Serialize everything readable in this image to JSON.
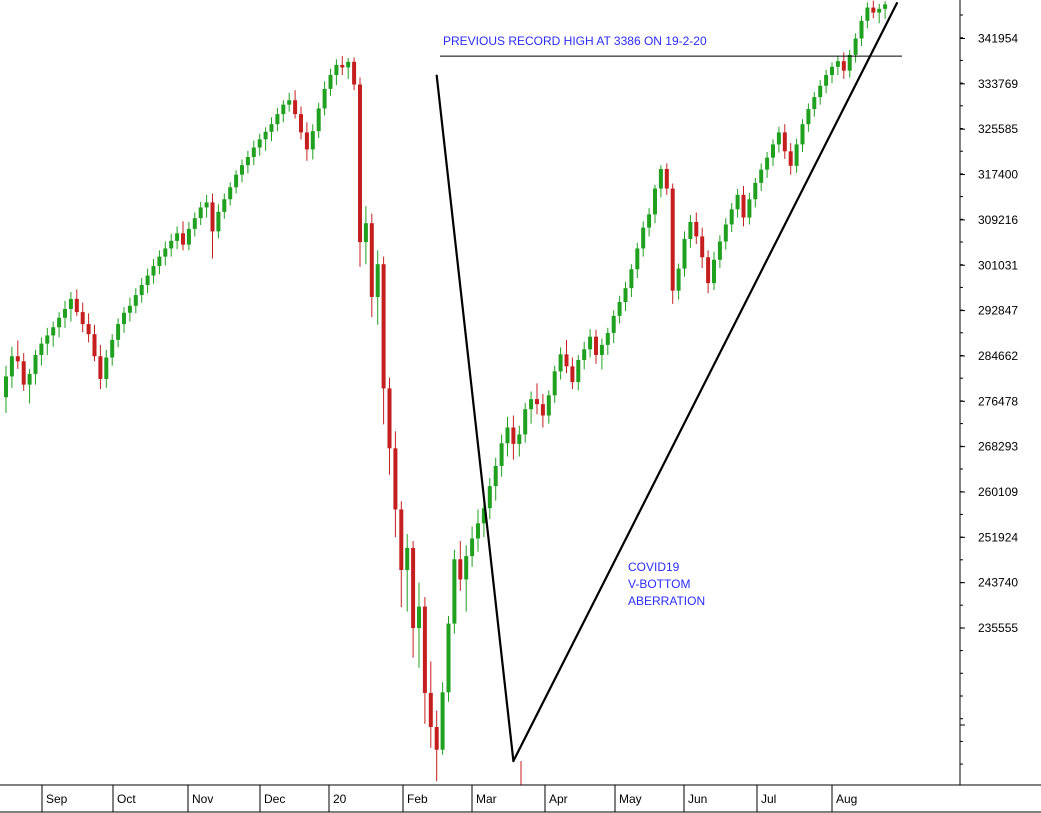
{
  "chart_data": {
    "type": "candlestick",
    "y_scale": "linear",
    "y_ticks": [
      "341954",
      "333769",
      "325585",
      "317400",
      "309216",
      "301031",
      "292847",
      "284662",
      "276478",
      "268293",
      "260109",
      "251924",
      "243740",
      "235555"
    ],
    "x_ticks": [
      "Sep",
      "Oct",
      "Nov",
      "Dec",
      "20",
      "Feb",
      "Mar",
      "Apr",
      "May",
      "Jun",
      "Jul",
      "Aug"
    ],
    "ylim": [
      223000,
      347500
    ],
    "annotations": [
      {
        "id": "record",
        "text": "PREVIOUS RECORD HIGH AT 3386 ON 19-2-20"
      },
      {
        "id": "covid",
        "lines": [
          "COVID19",
          "V-BOTTOM",
          "ABERRATION"
        ]
      }
    ],
    "reference_line": {
      "value": 338600,
      "label_ref": "record"
    },
    "trendlines": [
      {
        "name": "crash-line",
        "from": {
          "bar": 73,
          "value": 335500
        },
        "to": {
          "bar": 86,
          "value": 226800
        }
      },
      {
        "name": "recovery-line",
        "from": {
          "bar": 86,
          "value": 226800
        },
        "to": {
          "bar": 151,
          "value": 347000
        }
      }
    ],
    "bar_count": 150,
    "candles": [
      [
        284500,
        289500,
        282000,
        287800
      ],
      [
        287800,
        292500,
        286000,
        291000
      ],
      [
        291000,
        293500,
        289000,
        290200
      ],
      [
        290200,
        291500,
        285500,
        286500
      ],
      [
        286500,
        289000,
        283500,
        288200
      ],
      [
        288200,
        292000,
        286500,
        291200
      ],
      [
        291200,
        294000,
        289500,
        293000
      ],
      [
        293000,
        295500,
        291200,
        294300
      ],
      [
        294300,
        296500,
        292500,
        295600
      ],
      [
        295600,
        298000,
        294000,
        297100
      ],
      [
        297100,
        299800,
        295500,
        298500
      ],
      [
        298500,
        301200,
        296500,
        300100
      ],
      [
        300100,
        301600,
        297400,
        298000
      ],
      [
        298000,
        299500,
        294800,
        296100
      ],
      [
        296100,
        297800,
        293200,
        294500
      ],
      [
        294500,
        296000,
        290200,
        291000
      ],
      [
        291000,
        292800,
        285800,
        287400
      ],
      [
        287400,
        292000,
        286000,
        290800
      ],
      [
        290800,
        294500,
        289500,
        293600
      ],
      [
        293600,
        297000,
        292400,
        296100
      ],
      [
        296100,
        298800,
        294700,
        297900
      ],
      [
        297900,
        300300,
        296500,
        299000
      ],
      [
        299000,
        301800,
        297800,
        300700
      ],
      [
        300700,
        303400,
        299500,
        302300
      ],
      [
        302300,
        304900,
        301000,
        303800
      ],
      [
        303800,
        306400,
        302500,
        305300
      ],
      [
        305300,
        307800,
        304000,
        306800
      ],
      [
        306800,
        309200,
        305400,
        308100
      ],
      [
        308100,
        310400,
        306800,
        309300
      ],
      [
        309300,
        311600,
        308000,
        310500
      ],
      [
        310500,
        312400,
        307800,
        308700
      ],
      [
        308700,
        312300,
        307800,
        311200
      ],
      [
        311200,
        313800,
        310000,
        312900
      ],
      [
        312900,
        315500,
        311800,
        314600
      ],
      [
        314600,
        316600,
        313000,
        315400
      ],
      [
        315400,
        316800,
        306500,
        310800
      ],
      [
        310800,
        315100,
        309700,
        313900
      ],
      [
        313900,
        316800,
        312800,
        315900
      ],
      [
        315900,
        318600,
        314900,
        317800
      ],
      [
        317800,
        320500,
        316800,
        319800
      ],
      [
        319800,
        322200,
        318600,
        321300
      ],
      [
        321300,
        323600,
        320000,
        322600
      ],
      [
        322600,
        325200,
        321300,
        324100
      ],
      [
        324100,
        326300,
        322800,
        325400
      ],
      [
        325400,
        327300,
        323600,
        326600
      ],
      [
        326600,
        328900,
        325100,
        327800
      ],
      [
        327800,
        330400,
        326700,
        329400
      ],
      [
        329400,
        331600,
        328100,
        330900
      ],
      [
        330900,
        332800,
        329800,
        331600
      ],
      [
        331600,
        333200,
        328700,
        329400
      ],
      [
        329400,
        330600,
        325400,
        326500
      ],
      [
        326500,
        328100,
        322000,
        323800
      ],
      [
        323800,
        327800,
        322200,
        326700
      ],
      [
        326700,
        331200,
        325600,
        330300
      ],
      [
        330300,
        334600,
        329200,
        333400
      ],
      [
        333400,
        336600,
        332300,
        335600
      ],
      [
        335600,
        338100,
        334000,
        337200
      ],
      [
        337200,
        338600,
        335600,
        336800
      ],
      [
        336800,
        338300,
        335000,
        337700
      ],
      [
        337700,
        338400,
        333200,
        334100
      ],
      [
        334100,
        335200,
        305200,
        309100
      ],
      [
        309100,
        314800,
        305600,
        312100
      ],
      [
        312100,
        313600,
        297200,
        300400
      ],
      [
        300400,
        307800,
        296000,
        305600
      ],
      [
        305600,
        306800,
        280200,
        285900
      ],
      [
        285900,
        287600,
        272200,
        276400
      ],
      [
        276400,
        279100,
        262300,
        266700
      ],
      [
        266700,
        268000,
        251200,
        257100
      ],
      [
        257100,
        262800,
        250500,
        260600
      ],
      [
        260600,
        261700,
        243200,
        247900
      ],
      [
        247900,
        255100,
        241600,
        251300
      ],
      [
        251300,
        252800,
        232700,
        237600
      ],
      [
        237600,
        242600,
        228900,
        232200
      ],
      [
        232200,
        234800,
        223600,
        228600
      ],
      [
        228600,
        239300,
        227800,
        237700
      ],
      [
        237700,
        249800,
        236200,
        248600
      ],
      [
        248600,
        260300,
        247000,
        258800
      ],
      [
        258800,
        261700,
        253800,
        255600
      ],
      [
        255600,
        261000,
        250500,
        259300
      ],
      [
        259300,
        264000,
        257600,
        262100
      ],
      [
        262100,
        266700,
        260000,
        264500
      ],
      [
        264500,
        268400,
        262300,
        266900
      ],
      [
        266900,
        271700,
        265200,
        270400
      ],
      [
        270400,
        274900,
        268100,
        273600
      ],
      [
        273600,
        278600,
        271900,
        277200
      ],
      [
        277200,
        281400,
        275100,
        279700
      ],
      [
        279700,
        281600,
        274600,
        277100
      ],
      [
        277100,
        280000,
        275100,
        278600
      ],
      [
        278600,
        283600,
        277300,
        282600
      ],
      [
        282600,
        285400,
        280300,
        284200
      ],
      [
        284200,
        286700,
        281800,
        283400
      ],
      [
        283400,
        285000,
        279700,
        281600
      ],
      [
        281600,
        285600,
        280300,
        284800
      ],
      [
        284800,
        289500,
        283600,
        288600
      ],
      [
        288600,
        292400,
        287300,
        291300
      ],
      [
        291300,
        293600,
        288300,
        289400
      ],
      [
        289400,
        290800,
        285800,
        286900
      ],
      [
        286900,
        291200,
        285600,
        290400
      ],
      [
        290400,
        293300,
        288900,
        292100
      ],
      [
        292100,
        295300,
        290800,
        294100
      ],
      [
        294100,
        295200,
        289800,
        291200
      ],
      [
        291200,
        293800,
        288900,
        292800
      ],
      [
        292800,
        295500,
        291200,
        294700
      ],
      [
        294700,
        298300,
        293100,
        297400
      ],
      [
        297400,
        300600,
        296200,
        299600
      ],
      [
        299600,
        302800,
        298200,
        301800
      ],
      [
        301800,
        305600,
        300400,
        304800
      ],
      [
        304800,
        309000,
        303400,
        308100
      ],
      [
        308100,
        312400,
        306800,
        311400
      ],
      [
        311400,
        314500,
        310000,
        313500
      ],
      [
        313500,
        318200,
        312100,
        317600
      ],
      [
        317600,
        321300,
        316200,
        320700
      ],
      [
        320700,
        321600,
        316600,
        317600
      ],
      [
        317600,
        318400,
        299300,
        301400
      ],
      [
        301400,
        305700,
        300000,
        304900
      ],
      [
        304900,
        310800,
        303600,
        309600
      ],
      [
        309600,
        313400,
        308200,
        312300
      ],
      [
        312300,
        313800,
        308800,
        310000
      ],
      [
        310000,
        311400,
        305000,
        306700
      ],
      [
        306700,
        307800,
        301000,
        302600
      ],
      [
        302600,
        307600,
        301500,
        306300
      ],
      [
        306300,
        310200,
        305000,
        309200
      ],
      [
        309200,
        312900,
        307900,
        311900
      ],
      [
        311900,
        315300,
        310700,
        314300
      ],
      [
        314300,
        317500,
        313000,
        316600
      ],
      [
        316600,
        318000,
        311600,
        313000
      ],
      [
        313000,
        316900,
        311900,
        315900
      ],
      [
        315900,
        319300,
        314600,
        318500
      ],
      [
        318500,
        321600,
        317200,
        320600
      ],
      [
        320600,
        323400,
        319300,
        322500
      ],
      [
        322500,
        325400,
        321200,
        324600
      ],
      [
        324600,
        327400,
        323300,
        326500
      ],
      [
        326500,
        327800,
        322300,
        323500
      ],
      [
        323500,
        324800,
        319800,
        321200
      ],
      [
        321200,
        325500,
        320100,
        324600
      ],
      [
        324600,
        328600,
        323400,
        327800
      ],
      [
        327800,
        331100,
        326600,
        330200
      ],
      [
        330200,
        332900,
        329000,
        332100
      ],
      [
        332100,
        334800,
        330900,
        333900
      ],
      [
        333900,
        336400,
        332700,
        335600
      ],
      [
        335600,
        337600,
        334300,
        336900
      ],
      [
        336900,
        338600,
        335600,
        337800
      ],
      [
        337800,
        339200,
        335000,
        336300
      ],
      [
        336300,
        339600,
        335200,
        338800
      ],
      [
        338800,
        342200,
        337600,
        341400
      ],
      [
        341400,
        345000,
        340200,
        344200
      ],
      [
        344200,
        347100,
        343000,
        346300
      ],
      [
        346300,
        347400,
        344600,
        345500
      ],
      [
        345500,
        346900,
        343800,
        346100
      ],
      [
        346100,
        347300,
        344500,
        346800
      ]
    ]
  }
}
